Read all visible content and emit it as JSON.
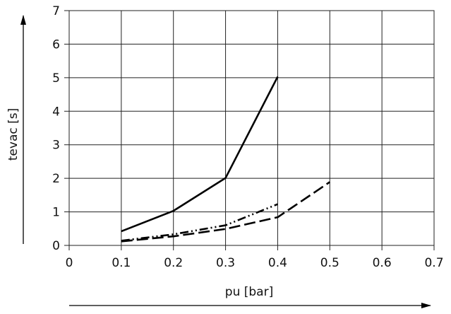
{
  "chart_data": {
    "type": "line",
    "title": "",
    "xlabel": "pu [bar]",
    "ylabel": "tevac [s]",
    "xlim": [
      0,
      0.7
    ],
    "ylim": [
      0,
      7
    ],
    "xticks": [
      "0",
      "0.1",
      "0.2",
      "0.3",
      "0.4",
      "0.5",
      "0.6",
      "0.7"
    ],
    "yticks": [
      "0",
      "1",
      "2",
      "3",
      "4",
      "5",
      "6",
      "7"
    ],
    "grid": true,
    "legend": "none",
    "series": [
      {
        "style": "solid",
        "x": [
          0.1,
          0.2,
          0.3,
          0.4
        ],
        "y": [
          0.42,
          1.03,
          2.01,
          5.03
        ]
      },
      {
        "style": "dashdot",
        "x": [
          0.1,
          0.2,
          0.3,
          0.4
        ],
        "y": [
          0.14,
          0.33,
          0.6,
          1.23
        ]
      },
      {
        "style": "dashed",
        "x": [
          0.1,
          0.2,
          0.3,
          0.4,
          0.5
        ],
        "y": [
          0.12,
          0.27,
          0.49,
          0.84,
          1.89
        ]
      }
    ]
  }
}
